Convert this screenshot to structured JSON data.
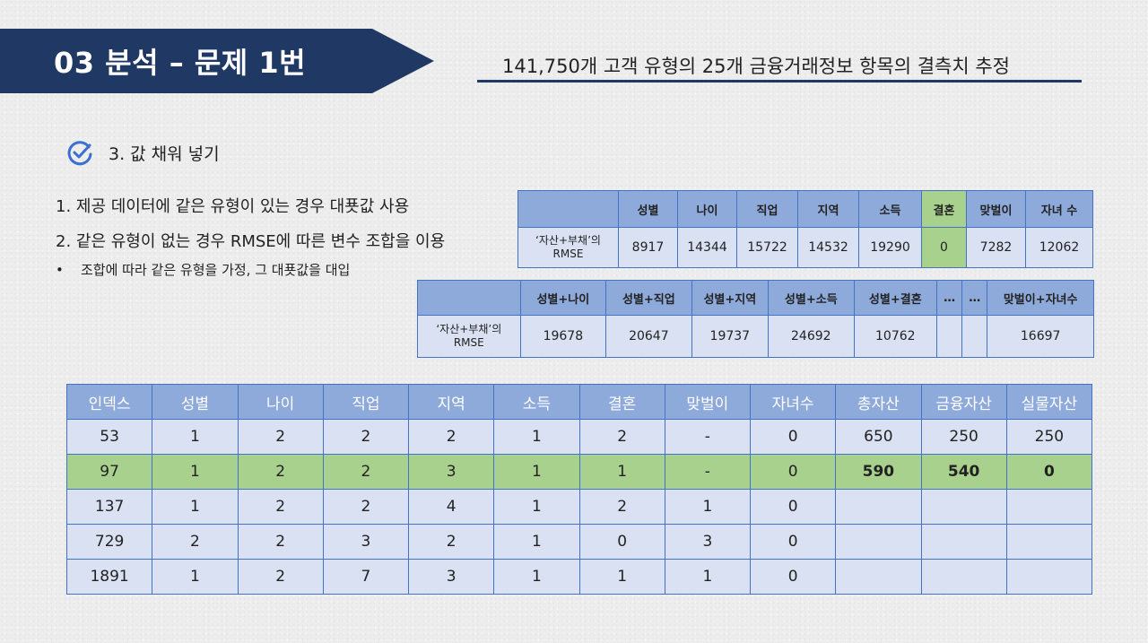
{
  "header": {
    "title": "03  분석 – 문제 1번",
    "subtitle": "141,750개 고객 유형의 25개 금융거래정보 항목의 결측치 추정"
  },
  "section": {
    "heading": "3. 값 채워 넣기",
    "icon": "check-circle-icon",
    "bullets": [
      "1. 제공 데이터에 같은 유형이 있는 경우 대푯값 사용",
      "2. 같은 유형이 없는 경우 RMSE에 따른 변수 조합을 이용",
      "조합에 따라 같은 유형을 가정, 그 대푯값을 대입"
    ],
    "bullet_marker": "•"
  },
  "rmse_single": {
    "row_label_line1": "‘자산+부채’의",
    "row_label_line2": "RMSE",
    "headers": [
      "성별",
      "나이",
      "직업",
      "지역",
      "소득",
      "결혼",
      "맞벌이",
      "자녀 수"
    ],
    "values": [
      "8917",
      "14344",
      "15722",
      "14532",
      "19290",
      "0",
      "7282",
      "12062"
    ],
    "highlight_color": "#a9d18e"
  },
  "rmse_combo": {
    "row_label_line1": "‘자산+부채’의",
    "row_label_line2": "RMSE",
    "headers": [
      "성별+나이",
      "성별+직업",
      "성별+지역",
      "성별+소득",
      "성별+결혼",
      "…",
      "…",
      "맞벌이+자녀수"
    ],
    "values": [
      "19678",
      "20647",
      "19737",
      "24692",
      "10762",
      "",
      "",
      "16697"
    ]
  },
  "data_table": {
    "headers": [
      "인덱스",
      "성별",
      "나이",
      "직업",
      "지역",
      "소득",
      "결혼",
      "맞벌이",
      "자녀수",
      "총자산",
      "금융자산",
      "실물자산"
    ],
    "rows": [
      [
        "53",
        "1",
        "2",
        "2",
        "2",
        "1",
        "2",
        "-",
        "0",
        "650",
        "250",
        "250"
      ],
      [
        "97",
        "1",
        "2",
        "2",
        "3",
        "1",
        "1",
        "-",
        "0",
        "590",
        "540",
        "0"
      ],
      [
        "137",
        "1",
        "2",
        "2",
        "4",
        "1",
        "2",
        "1",
        "0",
        "",
        "",
        ""
      ],
      [
        "729",
        "2",
        "2",
        "3",
        "2",
        "1",
        "0",
        "3",
        "0",
        "",
        "",
        ""
      ],
      [
        "1891",
        "1",
        "2",
        "7",
        "3",
        "1",
        "1",
        "1",
        "0",
        "",
        "",
        ""
      ]
    ],
    "highlight_row": "97"
  },
  "colors": {
    "banner": "#1f3864",
    "header_cell": "#8eaadb",
    "body_cell": "#d9e1f2",
    "highlight": "#a9d18e",
    "border": "#4472c4"
  }
}
